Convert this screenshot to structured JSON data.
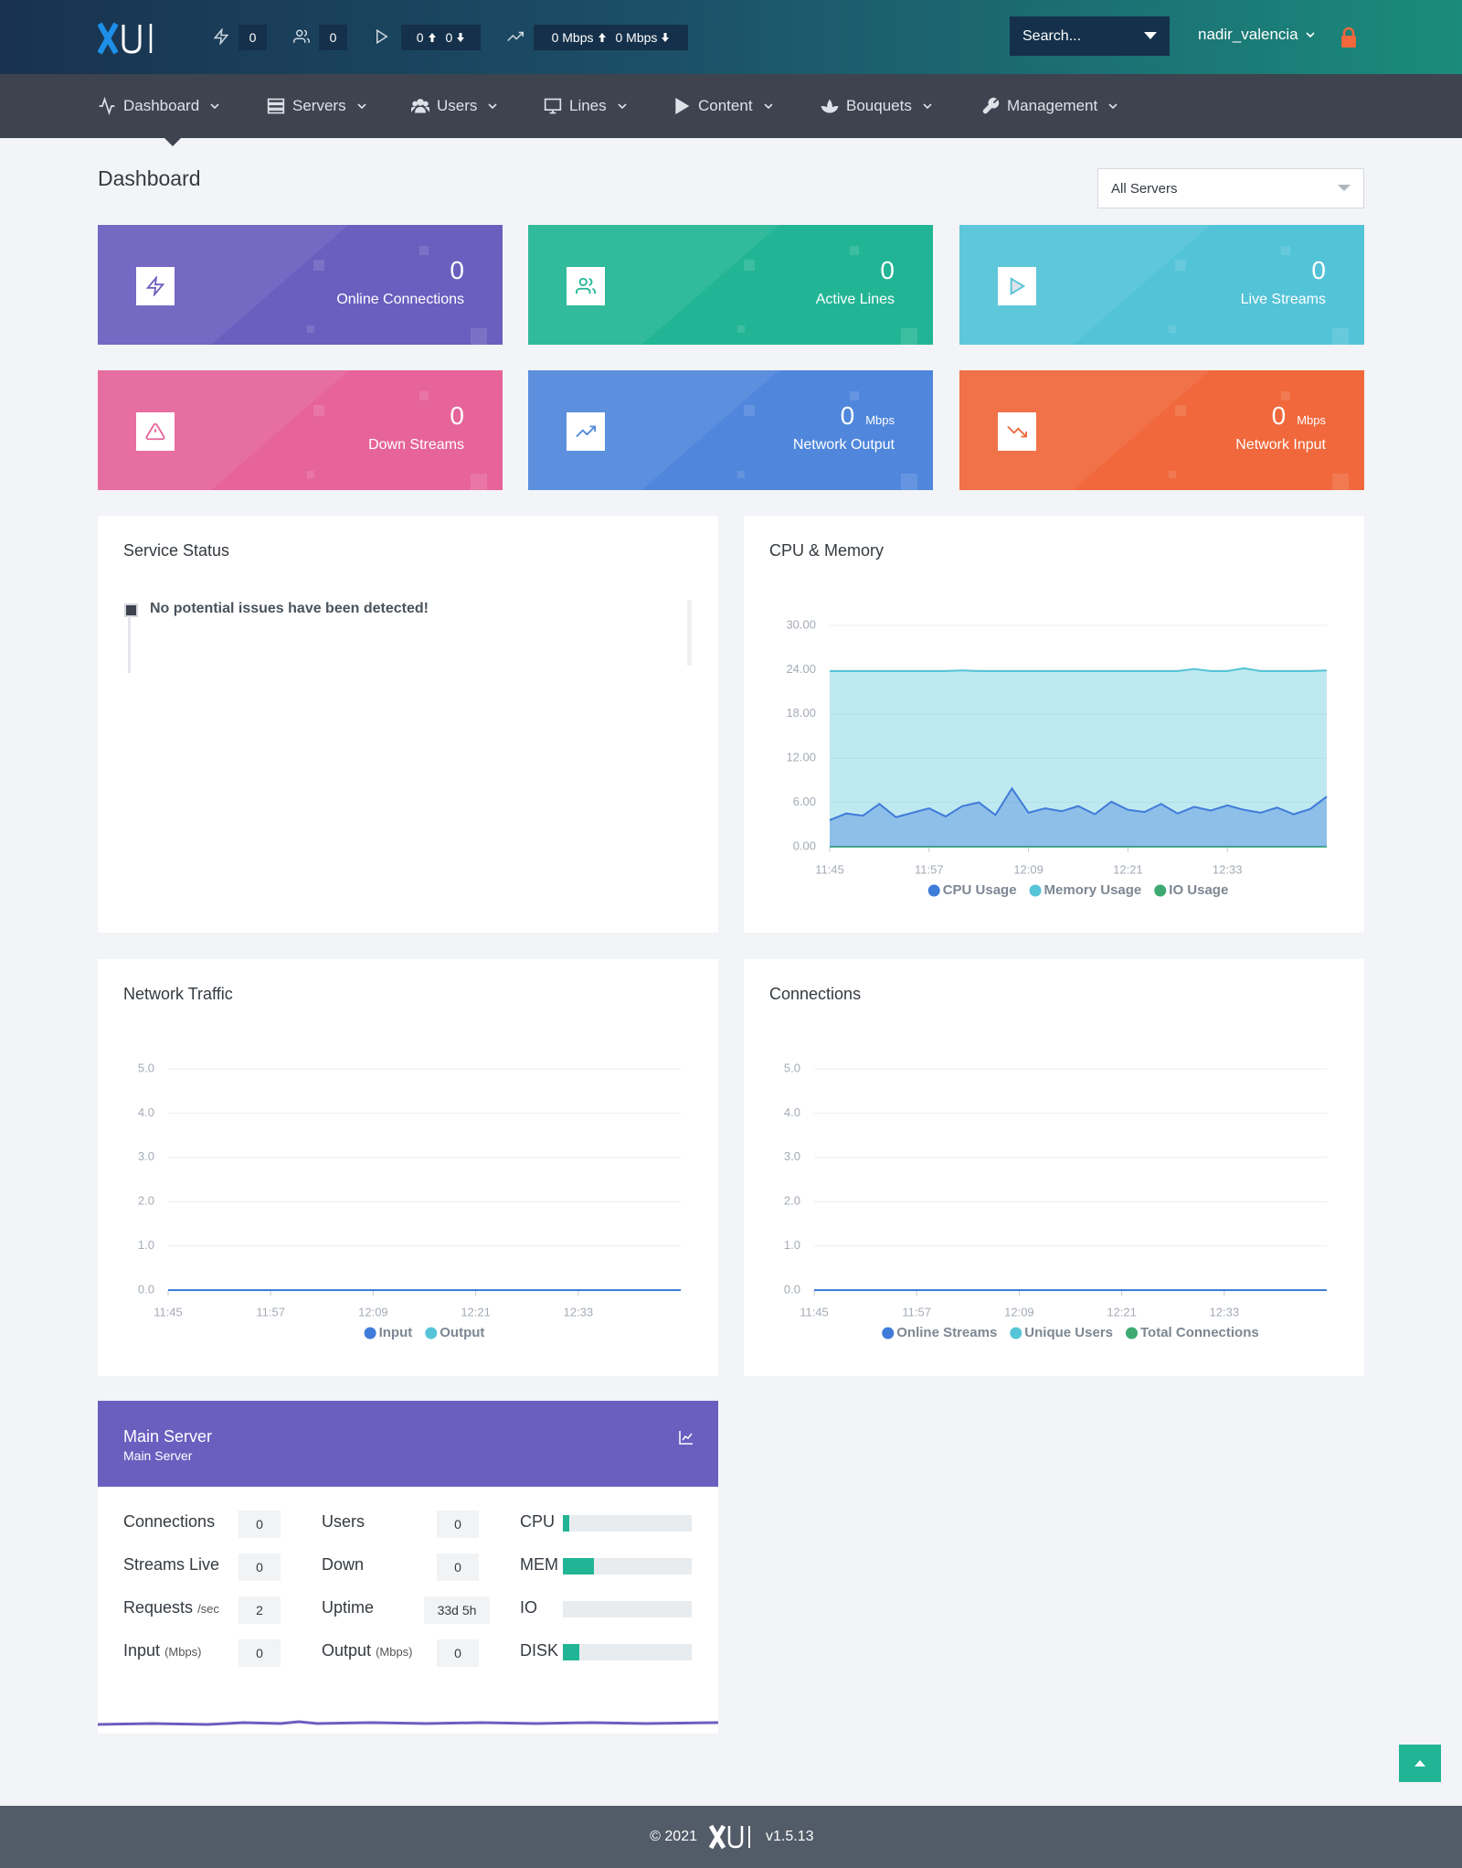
{
  "topbar": {
    "stats": {
      "connections": 0,
      "lines": 0,
      "streams_up": 0,
      "streams_down": 0,
      "output": "0 Mbps",
      "input": "0 Mbps"
    },
    "search": "Search...",
    "user": "nadir_valencia"
  },
  "nav": [
    "Dashboard",
    "Servers",
    "Users",
    "Lines",
    "Content",
    "Bouquets",
    "Management"
  ],
  "page": {
    "title": "Dashboard",
    "server_select": "All Servers"
  },
  "cards": [
    {
      "value": 0,
      "label": "Online Connections",
      "color": "#6b5ebf"
    },
    {
      "value": 0,
      "label": "Active Lines",
      "color": "#22b595"
    },
    {
      "value": 0,
      "label": "Live Streams",
      "color": "#53c3d8"
    },
    {
      "value": 0,
      "label": "Down Streams",
      "color": "#e6649a"
    },
    {
      "value": 0,
      "unit": "Mbps",
      "label": "Network Output",
      "color": "#5087dc"
    },
    {
      "value": 0,
      "unit": "Mbps",
      "label": "Network Input",
      "color": "#f0683b"
    }
  ],
  "service_status": {
    "title": "Service Status",
    "message": "No potential issues have been detected!"
  },
  "cpu_memory": {
    "type": "area",
    "title": "CPU & Memory",
    "categories": [
      "11:45",
      "11:47",
      "11:49",
      "11:51",
      "11:53",
      "11:55",
      "11:57",
      "11:59",
      "12:01",
      "12:03",
      "12:05",
      "12:07",
      "12:09",
      "12:11",
      "12:13",
      "12:15",
      "12:17",
      "12:19",
      "12:21",
      "12:23",
      "12:25",
      "12:27",
      "12:29",
      "12:31",
      "12:33",
      "12:35",
      "12:37",
      "12:39",
      "12:41",
      "12:43",
      "12:45"
    ],
    "xticks": [
      "11:45",
      "11:57",
      "12:09",
      "12:21",
      "12:33"
    ],
    "ylim": [
      0,
      30
    ],
    "yticks": [
      {
        "value": 0,
        "label": "0.00"
      },
      {
        "value": 6,
        "label": "6.00"
      },
      {
        "value": 12,
        "label": "12.00"
      },
      {
        "value": 18,
        "label": "18.00"
      },
      {
        "value": 24,
        "label": "24.00"
      },
      {
        "value": 30,
        "label": "30.00"
      }
    ],
    "series": [
      {
        "name": "CPU Usage",
        "color": "#3f7bd9",
        "values": [
          3.6,
          4.5,
          4.2,
          5.8,
          4.0,
          4.6,
          5.2,
          4.1,
          5.5,
          6.0,
          4.3,
          7.9,
          4.6,
          5.2,
          4.8,
          5.5,
          4.4,
          6.1,
          5.0,
          4.7,
          5.8,
          4.5,
          5.4,
          4.9,
          5.6,
          5.0,
          4.6,
          5.3,
          4.4,
          5.1,
          6.8
        ]
      },
      {
        "name": "Memory Usage",
        "color": "#57c5d8",
        "values": [
          23.8,
          23.8,
          23.8,
          23.8,
          23.8,
          23.8,
          23.8,
          23.8,
          23.9,
          23.8,
          23.8,
          23.8,
          23.8,
          23.8,
          23.8,
          23.8,
          23.8,
          23.8,
          23.8,
          23.8,
          23.8,
          23.8,
          24.1,
          23.8,
          23.8,
          24.2,
          23.8,
          23.8,
          23.8,
          23.8,
          23.9
        ]
      },
      {
        "name": "IO Usage",
        "color": "#3daa72",
        "values": [
          0,
          0,
          0,
          0,
          0,
          0,
          0,
          0,
          0,
          0,
          0,
          0,
          0,
          0,
          0,
          0,
          0,
          0,
          0,
          0,
          0,
          0,
          0,
          0,
          0,
          0,
          0,
          0,
          0,
          0,
          0
        ]
      }
    ]
  },
  "network_traffic": {
    "type": "line",
    "title": "Network Traffic",
    "categories": [
      "11:45",
      "11:47",
      "11:49",
      "11:51",
      "11:53",
      "11:55",
      "11:57",
      "11:59",
      "12:01",
      "12:03",
      "12:05",
      "12:07",
      "12:09",
      "12:11",
      "12:13",
      "12:15",
      "12:17",
      "12:19",
      "12:21",
      "12:23",
      "12:25",
      "12:27",
      "12:29",
      "12:31",
      "12:33",
      "12:35",
      "12:37",
      "12:39",
      "12:41",
      "12:43",
      "12:45"
    ],
    "xticks": [
      "11:45",
      "11:57",
      "12:09",
      "12:21",
      "12:33"
    ],
    "ylim": [
      0,
      5
    ],
    "yticks": [
      {
        "value": 0,
        "label": "0.0"
      },
      {
        "value": 1,
        "label": "1.0"
      },
      {
        "value": 2,
        "label": "2.0"
      },
      {
        "value": 3,
        "label": "3.0"
      },
      {
        "value": 4,
        "label": "4.0"
      },
      {
        "value": 5,
        "label": "5.0"
      }
    ],
    "series": [
      {
        "name": "Input",
        "color": "#3f7bd9",
        "values": [
          0,
          0,
          0,
          0,
          0,
          0,
          0,
          0,
          0,
          0,
          0,
          0,
          0,
          0,
          0,
          0,
          0,
          0,
          0,
          0,
          0,
          0,
          0,
          0,
          0,
          0,
          0,
          0,
          0,
          0,
          0
        ]
      },
      {
        "name": "Output",
        "color": "#57c5d8",
        "values": [
          0,
          0,
          0,
          0,
          0,
          0,
          0,
          0,
          0,
          0,
          0,
          0,
          0,
          0,
          0,
          0,
          0,
          0,
          0,
          0,
          0,
          0,
          0,
          0,
          0,
          0,
          0,
          0,
          0,
          0,
          0
        ]
      }
    ]
  },
  "connections": {
    "type": "line",
    "title": "Connections",
    "categories": [
      "11:45",
      "11:47",
      "11:49",
      "11:51",
      "11:53",
      "11:55",
      "11:57",
      "11:59",
      "12:01",
      "12:03",
      "12:05",
      "12:07",
      "12:09",
      "12:11",
      "12:13",
      "12:15",
      "12:17",
      "12:19",
      "12:21",
      "12:23",
      "12:25",
      "12:27",
      "12:29",
      "12:31",
      "12:33",
      "12:35",
      "12:37",
      "12:39",
      "12:41",
      "12:43",
      "12:45"
    ],
    "xticks": [
      "11:45",
      "11:57",
      "12:09",
      "12:21",
      "12:33"
    ],
    "ylim": [
      0,
      5
    ],
    "yticks": [
      {
        "value": 0,
        "label": "0.0"
      },
      {
        "value": 1,
        "label": "1.0"
      },
      {
        "value": 2,
        "label": "2.0"
      },
      {
        "value": 3,
        "label": "3.0"
      },
      {
        "value": 4,
        "label": "4.0"
      },
      {
        "value": 5,
        "label": "5.0"
      }
    ],
    "series": [
      {
        "name": "Online Streams",
        "color": "#3f7bd9",
        "values": [
          0,
          0,
          0,
          0,
          0,
          0,
          0,
          0,
          0,
          0,
          0,
          0,
          0,
          0,
          0,
          0,
          0,
          0,
          0,
          0,
          0,
          0,
          0,
          0,
          0,
          0,
          0,
          0,
          0,
          0,
          0
        ]
      },
      {
        "name": "Unique Users",
        "color": "#57c5d8",
        "values": [
          0,
          0,
          0,
          0,
          0,
          0,
          0,
          0,
          0,
          0,
          0,
          0,
          0,
          0,
          0,
          0,
          0,
          0,
          0,
          0,
          0,
          0,
          0,
          0,
          0,
          0,
          0,
          0,
          0,
          0,
          0
        ]
      },
      {
        "name": "Total Connections",
        "color": "#3daa72",
        "values": [
          0,
          0,
          0,
          0,
          0,
          0,
          0,
          0,
          0,
          0,
          0,
          0,
          0,
          0,
          0,
          0,
          0,
          0,
          0,
          0,
          0,
          0,
          0,
          0,
          0,
          0,
          0,
          0,
          0,
          0,
          0
        ]
      }
    ]
  },
  "main_server": {
    "title": "Main Server",
    "subtitle": "Main Server",
    "stats": [
      {
        "label": "Connections",
        "value": 0
      },
      {
        "label": "Streams Live",
        "value": 0
      },
      {
        "label": "Requests",
        "unit": "/sec",
        "value": 2
      },
      {
        "label": "Input",
        "unit": "(Mbps)",
        "value": 0
      },
      {
        "label": "Users",
        "value": 0
      },
      {
        "label": "Down",
        "value": 0
      },
      {
        "label": "Uptime",
        "value": "33d 5h"
      },
      {
        "label": "Output",
        "unit": "(Mbps)",
        "value": 0
      }
    ],
    "xlim": [
      0,
      100
    ],
    "usage": [
      {
        "label": "CPU",
        "value": 5
      },
      {
        "label": "MEM",
        "value": 24
      },
      {
        "label": "IO",
        "value": 0
      },
      {
        "label": "DISK",
        "value": 13
      }
    ],
    "color": "#22b595"
  },
  "footer": {
    "copyright": "© 2021",
    "version": "v1.5.13"
  }
}
